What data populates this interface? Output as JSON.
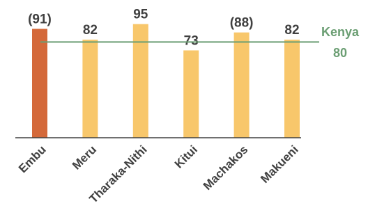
{
  "chart_data": {
    "type": "bar",
    "categories": [
      "Embu",
      "Meru",
      "Tharaka-Nithi",
      "Kitui",
      "Machakos",
      "Makueni"
    ],
    "values": [
      91,
      82,
      95,
      73,
      88,
      82
    ],
    "data_labels": [
      "(91)",
      "82",
      "95",
      "73",
      "(88)",
      "82"
    ],
    "highlight_index": 0,
    "colors": {
      "highlight": "#D4693A",
      "bar": "#F8C76B",
      "reference": "#6B9E73",
      "axis": "#404040",
      "text": "#404040"
    },
    "reference_line": {
      "value": 80,
      "label": "Kenya",
      "value_label": "80"
    },
    "ylim": [
      0,
      100
    ],
    "grid": false,
    "legend": "none"
  }
}
